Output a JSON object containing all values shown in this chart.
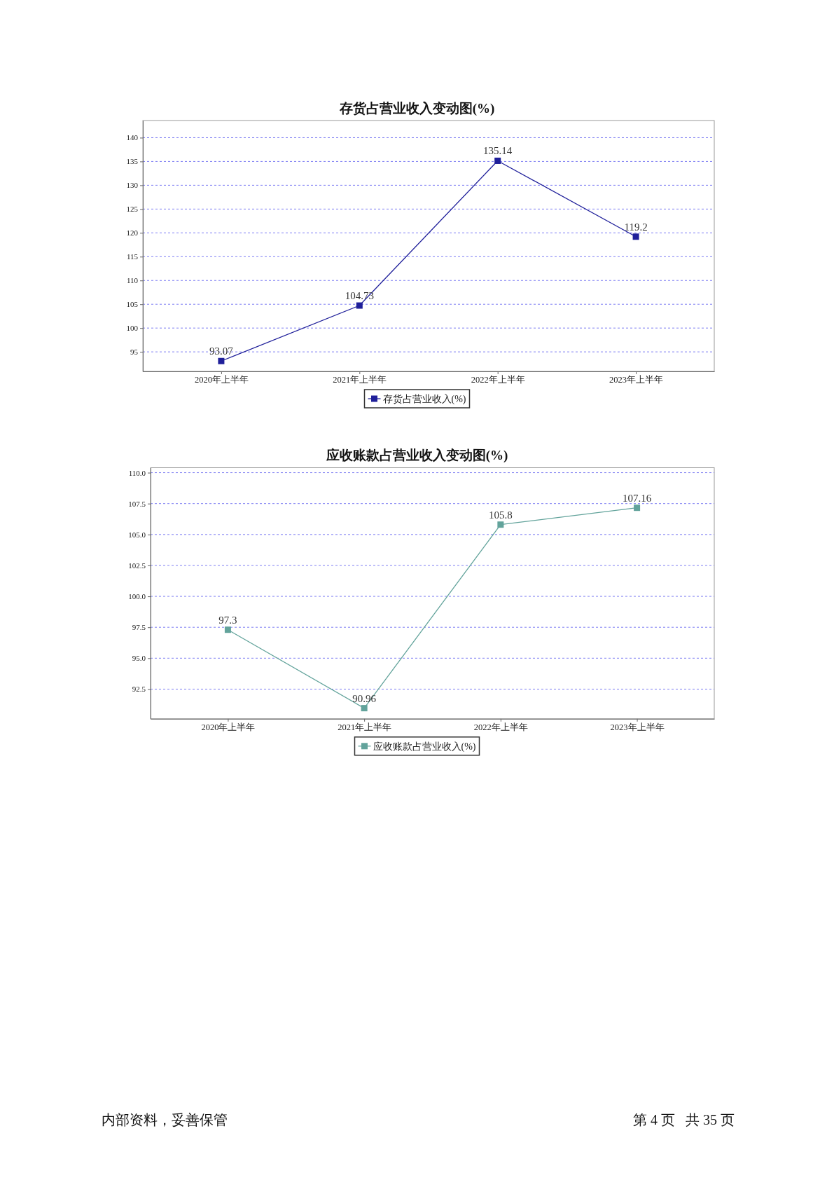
{
  "chart_data": [
    {
      "type": "line",
      "title": "存货占营业收入变动图(%)",
      "categories": [
        "2020年上半年",
        "2021年上半年",
        "2022年上半年",
        "2023年上半年"
      ],
      "series": [
        {
          "name": "存货占营业收入(%)",
          "color": "#1f1f9a",
          "values": [
            93.07,
            104.73,
            135.14,
            119.2
          ]
        }
      ],
      "ylim": [
        90.9,
        143.6
      ],
      "yticks": [
        95,
        100,
        105,
        110,
        115,
        120,
        125,
        130,
        135,
        140
      ],
      "grid": "y",
      "legend": "bottom",
      "marker": "square",
      "line_style": "solid",
      "data_labels": true
    },
    {
      "type": "line",
      "title": "应收账款占营业收入变动图(%)",
      "categories": [
        "2020年上半年",
        "2021年上半年",
        "2022年上半年",
        "2023年上半年"
      ],
      "series": [
        {
          "name": "应收账款占营业收入(%)",
          "color": "#62a39b",
          "values": [
            97.3,
            90.96,
            105.8,
            107.16
          ]
        }
      ],
      "ylim": [
        90.1,
        110.4
      ],
      "yticks": [
        92.5,
        {
          "value": 95,
          "label": "95.0"
        },
        97.5,
        {
          "value": 100,
          "label": "100.0"
        },
        102.5,
        {
          "value": 105,
          "label": "105.0"
        },
        107.5,
        {
          "value": 110,
          "label": "110.0"
        }
      ],
      "grid": "y",
      "legend": "bottom",
      "marker": "square",
      "line_style": "solid",
      "data_labels": true,
      "annotations": [
        "内部资料，妥善保管",
        "第 4 页   共 35 页"
      ]
    }
  ]
}
